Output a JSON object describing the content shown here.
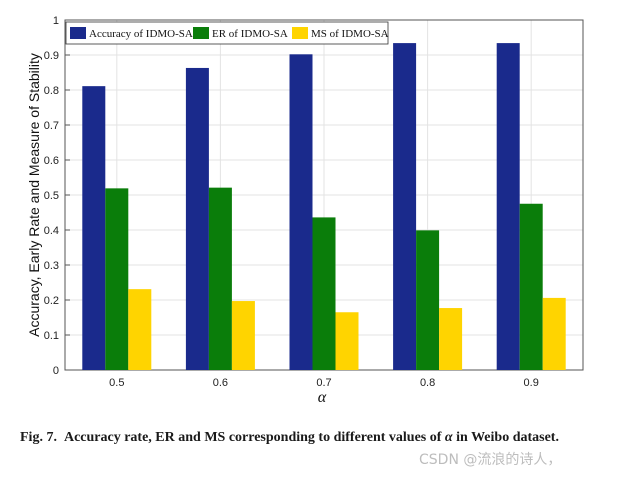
{
  "chart_data": {
    "type": "bar",
    "categories": [
      "0.5",
      "0.6",
      "0.7",
      "0.8",
      "0.9"
    ],
    "series": [
      {
        "name": "Accuracy of IDMO-SA",
        "color": "#1a2a8c",
        "values": [
          0.811,
          0.863,
          0.902,
          0.934,
          0.934
        ]
      },
      {
        "name": "ER of IDMO-SA",
        "color": "#0a7d0a",
        "values": [
          0.519,
          0.521,
          0.436,
          0.399,
          0.475
        ]
      },
      {
        "name": "MS of IDMO-SA",
        "color": "#ffd400",
        "values": [
          0.231,
          0.197,
          0.165,
          0.177,
          0.206
        ]
      }
    ],
    "ylim": [
      0,
      1
    ],
    "yticks": [
      0,
      0.1,
      0.2,
      0.3,
      0.4,
      0.5,
      0.6,
      0.7,
      0.8,
      0.9,
      1
    ],
    "ytick_labels": [
      "0",
      "0.1",
      "0.2",
      "0.3",
      "0.4",
      "0.5",
      "0.6",
      "0.7",
      "0.8",
      "0.9",
      "1"
    ],
    "xlabel": "α",
    "ylabel": "Accuracy, Early Rate and Measure of Stability",
    "grid": true,
    "legend_position": "top-left"
  },
  "caption": {
    "label": "Fig. 7.",
    "text_before": "Accuracy rate, ER and MS corresponding to different values of",
    "symbol": "α",
    "text_after": "in Weibo dataset."
  },
  "watermark": "CSDN @流浪的诗人，"
}
